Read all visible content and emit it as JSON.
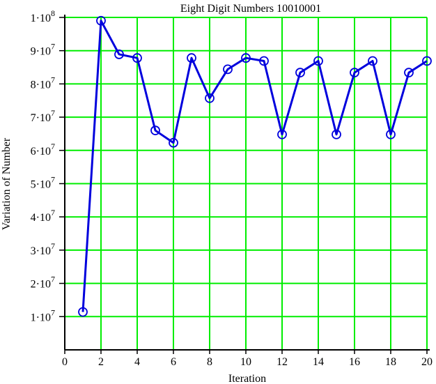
{
  "chart_data": {
    "type": "line",
    "title": "Eight  Digit Numbers 10010001",
    "xlabel": "Iteration",
    "ylabel": "Variation of Number",
    "xlim": [
      0,
      20
    ],
    "ylim": [
      0,
      100000000
    ],
    "grid": true,
    "x_ticks": [
      "0",
      "2",
      "4",
      "6",
      "8",
      "10",
      "12",
      "14",
      "16",
      "18",
      "20"
    ],
    "y_ticks": [
      {
        "mantissa": "1",
        "exp": "7",
        "value": 10000000
      },
      {
        "mantissa": "2",
        "exp": "7",
        "value": 20000000
      },
      {
        "mantissa": "3",
        "exp": "7",
        "value": 30000000
      },
      {
        "mantissa": "4",
        "exp": "7",
        "value": 40000000
      },
      {
        "mantissa": "5",
        "exp": "7",
        "value": 50000000
      },
      {
        "mantissa": "6",
        "exp": "7",
        "value": 60000000
      },
      {
        "mantissa": "7",
        "exp": "7",
        "value": 70000000
      },
      {
        "mantissa": "8",
        "exp": "7",
        "value": 80000000
      },
      {
        "mantissa": "9",
        "exp": "7",
        "value": 90000000
      },
      {
        "mantissa": "1",
        "exp": "8",
        "value": 100000000
      }
    ],
    "colors": {
      "line": "#0000dd",
      "grid": "#00ee00",
      "axis": "#000000"
    },
    "marker": "open-circle",
    "x": [
      1,
      2,
      3,
      4,
      5,
      6,
      7,
      8,
      9,
      10,
      11,
      12,
      13,
      14,
      15,
      16,
      17,
      18,
      19,
      20
    ],
    "y": [
      11400000,
      99000000,
      88900000,
      87800000,
      66000000,
      62300000,
      87800000,
      75700000,
      84400000,
      87800000,
      86900000,
      64800000,
      83400000,
      86900000,
      64800000,
      83400000,
      86900000,
      64800000,
      83400000,
      86900000
    ]
  }
}
